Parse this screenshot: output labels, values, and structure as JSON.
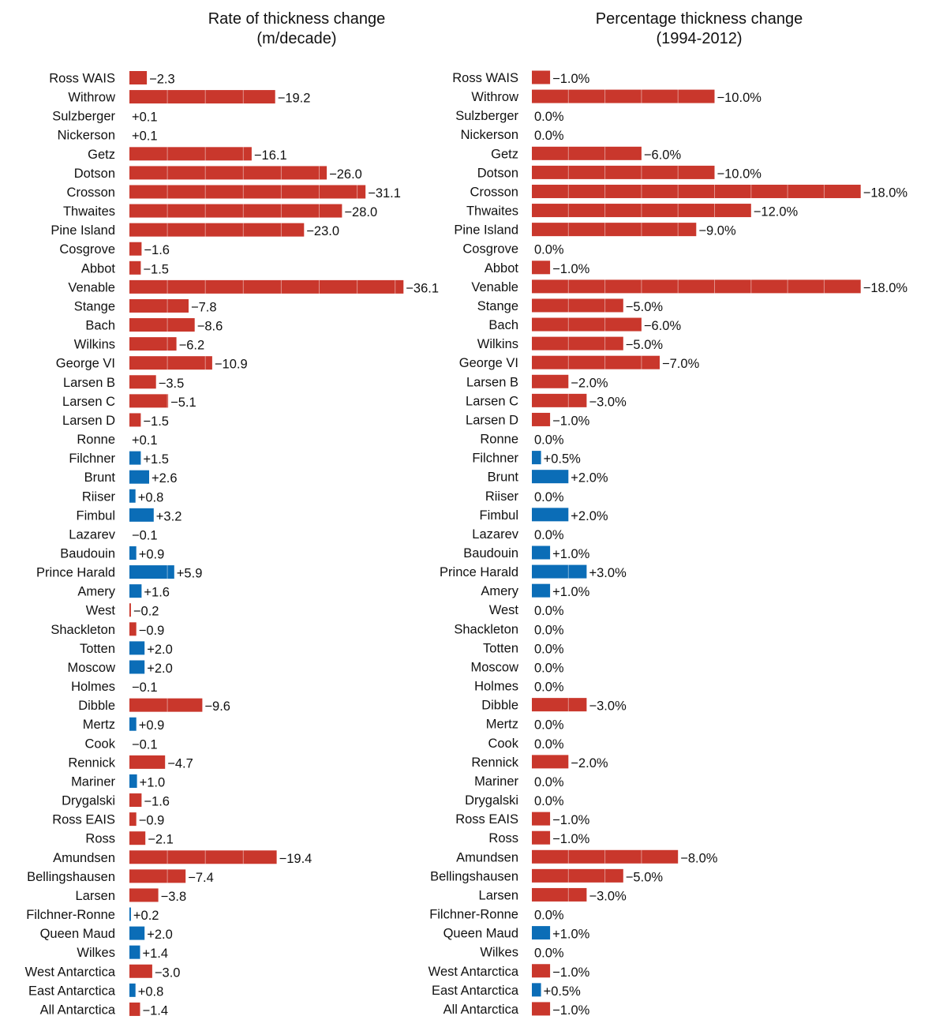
{
  "colors": {
    "negative": "#c9372c",
    "positive": "#0b6db7"
  },
  "chart_data": [
    {
      "type": "bar",
      "orientation": "horizontal",
      "title": "Rate of thickness change",
      "subtitle": "(m/decade)",
      "categories": [
        "Ross WAIS",
        "Withrow",
        "Sulzberger",
        "Nickerson",
        "Getz",
        "Dotson",
        "Crosson",
        "Thwaites",
        "Pine Island",
        "Cosgrove",
        "Abbot",
        "Venable",
        "Stange",
        "Bach",
        "Wilkins",
        "George VI",
        "Larsen B",
        "Larsen C",
        "Larsen D",
        "Ronne",
        "Filchner",
        "Brunt",
        "Riiser",
        "Fimbul",
        "Lazarev",
        "Baudouin",
        "Prince Harald",
        "Amery",
        "West",
        "Shackleton",
        "Totten",
        "Moscow",
        "Holmes",
        "Dibble",
        "Mertz",
        "Cook",
        "Rennick",
        "Mariner",
        "Drygalski",
        "Ross EAIS",
        "Ross",
        "Amundsen",
        "Bellingshausen",
        "Larsen",
        "Filchner-Ronne",
        "Queen Maud",
        "Wilkes",
        "West Antarctica",
        "East Antarctica",
        "All Antarctica"
      ],
      "values": [
        -2.3,
        -19.2,
        0.1,
        0.1,
        -16.1,
        -26.0,
        -31.1,
        -28.0,
        -23.0,
        -1.6,
        -1.5,
        -36.1,
        -7.8,
        -8.6,
        -6.2,
        -10.9,
        -3.5,
        -5.1,
        -1.5,
        0.1,
        1.5,
        2.6,
        0.8,
        3.2,
        -0.1,
        0.9,
        5.9,
        1.6,
        -0.2,
        -0.9,
        2.0,
        2.0,
        -0.1,
        -9.6,
        0.9,
        -0.1,
        -4.7,
        1.0,
        -1.6,
        -0.9,
        -2.1,
        -19.4,
        -7.4,
        -3.8,
        0.2,
        2.0,
        1.4,
        -3.0,
        0.8,
        -1.4
      ],
      "labels": [
        "−2.3",
        "−19.2",
        "+0.1",
        "+0.1",
        "−16.1",
        "−26.0",
        "−31.1",
        "−28.0",
        "−23.0",
        "−1.6",
        "−1.5",
        "−36.1",
        "−7.8",
        "−8.6",
        "−6.2",
        "−10.9",
        "−3.5",
        "−5.1",
        "−1.5",
        "+0.1",
        "+1.5",
        "+2.6",
        "+0.8",
        "+3.2",
        "−0.1",
        "+0.9",
        "+5.9",
        "+1.6",
        "−0.2",
        "−0.9",
        "+2.0",
        "+2.0",
        "−0.1",
        "−9.6",
        "+0.9",
        "−0.1",
        "−4.7",
        "+1.0",
        "−1.6",
        "−0.9",
        "−2.1",
        "−19.4",
        "−7.4",
        "−3.8",
        "+0.2",
        "+2.0",
        "+1.4",
        "−3.0",
        "+0.8",
        "−1.4"
      ],
      "bar_length": "absolute value"
    },
    {
      "type": "bar",
      "orientation": "horizontal",
      "title": "Percentage thickness change",
      "subtitle": "(1994-2012)",
      "categories": [
        "Ross WAIS",
        "Withrow",
        "Sulzberger",
        "Nickerson",
        "Getz",
        "Dotson",
        "Crosson",
        "Thwaites",
        "Pine Island",
        "Cosgrove",
        "Abbot",
        "Venable",
        "Stange",
        "Bach",
        "Wilkins",
        "George VI",
        "Larsen B",
        "Larsen C",
        "Larsen D",
        "Ronne",
        "Filchner",
        "Brunt",
        "Riiser",
        "Fimbul",
        "Lazarev",
        "Baudouin",
        "Prince Harald",
        "Amery",
        "West",
        "Shackleton",
        "Totten",
        "Moscow",
        "Holmes",
        "Dibble",
        "Mertz",
        "Cook",
        "Rennick",
        "Mariner",
        "Drygalski",
        "Ross EAIS",
        "Ross",
        "Amundsen",
        "Bellingshausen",
        "Larsen",
        "Filchner-Ronne",
        "Queen Maud",
        "Wilkes",
        "West Antarctica",
        "East Antarctica",
        "All Antarctica"
      ],
      "values": [
        -1.0,
        -10.0,
        0.0,
        0.0,
        -6.0,
        -10.0,
        -18.0,
        -12.0,
        -9.0,
        0.0,
        -1.0,
        -18.0,
        -5.0,
        -6.0,
        -5.0,
        -7.0,
        -2.0,
        -3.0,
        -1.0,
        0.0,
        0.5,
        2.0,
        0.0,
        2.0,
        0.0,
        1.0,
        3.0,
        1.0,
        0.0,
        0.0,
        0.0,
        0.0,
        0.0,
        -3.0,
        0.0,
        0.0,
        -2.0,
        0.0,
        0.0,
        -1.0,
        -1.0,
        -8.0,
        -5.0,
        -3.0,
        0.0,
        1.0,
        0.0,
        -1.0,
        0.5,
        -1.0
      ],
      "labels": [
        "−1.0%",
        "−10.0%",
        "0.0%",
        "0.0%",
        "−6.0%",
        "−10.0%",
        "−18.0%",
        "−12.0%",
        "−9.0%",
        "0.0%",
        "−1.0%",
        "−18.0%",
        "−5.0%",
        "−6.0%",
        "−5.0%",
        "−7.0%",
        "−2.0%",
        "−3.0%",
        "−1.0%",
        "0.0%",
        "+0.5%",
        "+2.0%",
        "0.0%",
        "+2.0%",
        "0.0%",
        "+1.0%",
        "+3.0%",
        "+1.0%",
        "0.0%",
        "0.0%",
        "0.0%",
        "0.0%",
        "0.0%",
        "−3.0%",
        "0.0%",
        "0.0%",
        "−2.0%",
        "0.0%",
        "0.0%",
        "−1.0%",
        "−1.0%",
        "−8.0%",
        "−5.0%",
        "−3.0%",
        "0.0%",
        "+1.0%",
        "0.0%",
        "−1.0%",
        "+0.5%",
        "−1.0%"
      ],
      "bar_length": "absolute value"
    }
  ]
}
